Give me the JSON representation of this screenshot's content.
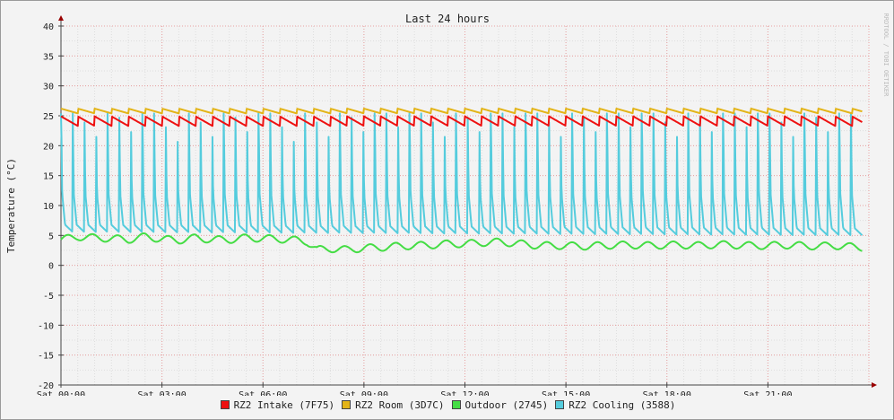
{
  "chart_data": {
    "type": "line",
    "title": "Last 24 hours",
    "ylabel": "Temperature (°C)",
    "watermark": "RRDTOOL / TOBI OETIKER",
    "ylim": [
      -20,
      40
    ],
    "yticks": [
      40,
      35,
      30,
      25,
      20,
      15,
      10,
      5,
      0,
      -5,
      -10,
      -15,
      -20
    ],
    "xlim": [
      "Sat 00:00",
      "Sun 00:00"
    ],
    "xtick_labels": [
      "Sat 00:00",
      "Sat 03:00",
      "Sat 06:00",
      "Sat 09:00",
      "Sat 12:00",
      "Sat 15:00",
      "Sat 18:00",
      "Sat 21:00"
    ],
    "x_unit": "hours",
    "x_range": [
      0,
      23.8
    ],
    "grid": true,
    "legend_position": "bottom",
    "series": [
      {
        "name": "RZ2 Intake (7F75)",
        "color": "#ee1111",
        "pattern": "sawtooth",
        "cycle_hours": 0.5,
        "low": 23.3,
        "high": 24.9
      },
      {
        "name": "RZ2 Room (3D7C)",
        "color": "#e3b418",
        "pattern": "sawtooth",
        "cycle_hours": 0.5,
        "low": 25.4,
        "high": 26.2
      },
      {
        "name": "Outdoor (2745)",
        "color": "#44dd44",
        "pattern": "wave",
        "points": [
          [
            0.0,
            4.3
          ],
          [
            0.5,
            4.8
          ],
          [
            1.0,
            4.6
          ],
          [
            1.5,
            4.5
          ],
          [
            2.0,
            4.3
          ],
          [
            2.5,
            4.8
          ],
          [
            3.0,
            4.4
          ],
          [
            3.5,
            4.2
          ],
          [
            4.0,
            4.6
          ],
          [
            4.5,
            4.3
          ],
          [
            5.0,
            4.3
          ],
          [
            5.5,
            4.6
          ],
          [
            6.0,
            4.5
          ],
          [
            6.5,
            4.4
          ],
          [
            7.0,
            4.2
          ],
          [
            7.3,
            4.0
          ],
          [
            7.6,
            2.6
          ],
          [
            8.0,
            2.8
          ],
          [
            8.5,
            2.6
          ],
          [
            9.0,
            2.9
          ],
          [
            9.5,
            3.0
          ],
          [
            10.0,
            3.2
          ],
          [
            10.5,
            3.3
          ],
          [
            11.0,
            3.4
          ],
          [
            11.5,
            3.6
          ],
          [
            12.0,
            3.6
          ],
          [
            12.5,
            3.8
          ],
          [
            13.0,
            3.9
          ],
          [
            13.5,
            3.7
          ],
          [
            14.0,
            3.4
          ],
          [
            14.5,
            3.3
          ],
          [
            15.0,
            3.3
          ],
          [
            15.5,
            3.2
          ],
          [
            16.0,
            3.3
          ],
          [
            16.5,
            3.4
          ],
          [
            17.0,
            3.4
          ],
          [
            17.5,
            3.3
          ],
          [
            18.0,
            3.4
          ],
          [
            18.5,
            3.4
          ],
          [
            19.0,
            3.3
          ],
          [
            19.5,
            3.5
          ],
          [
            20.0,
            3.4
          ],
          [
            20.5,
            3.3
          ],
          [
            21.0,
            3.3
          ],
          [
            21.5,
            3.4
          ],
          [
            22.0,
            3.3
          ],
          [
            22.5,
            3.2
          ],
          [
            23.0,
            3.3
          ],
          [
            23.5,
            3.1
          ],
          [
            23.8,
            3.0
          ]
        ],
        "wiggle": 1.2
      },
      {
        "name": "RZ2 Cooling (3588)",
        "color": "#55ccdd",
        "pattern": "spikes",
        "cycle_hours": 0.345,
        "base_start": 5.6,
        "base_end": 5.0,
        "peak": 25.4
      }
    ]
  }
}
